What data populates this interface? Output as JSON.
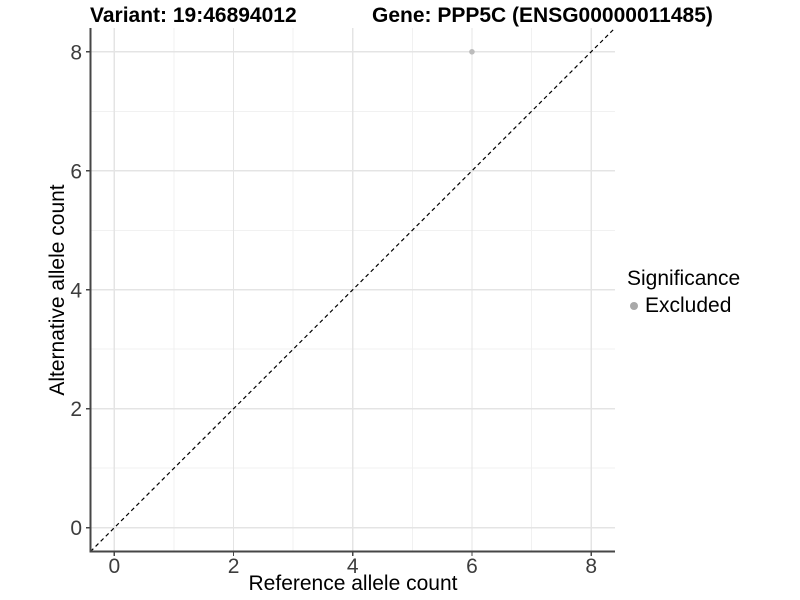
{
  "chart_data": {
    "type": "scatter",
    "title_left": "Variant: 19:46894012",
    "title_right": "Gene: PPP5C (ENSG00000011485)",
    "xlabel": "Reference allele count",
    "ylabel": "Alternative allele count",
    "xlim": [
      -0.4,
      8.4
    ],
    "ylim": [
      -0.4,
      8.4
    ],
    "x_ticks": [
      0,
      2,
      4,
      6,
      8
    ],
    "y_ticks": [
      0,
      2,
      4,
      6,
      8
    ],
    "x_minor_ticks": [
      1,
      3,
      5,
      7
    ],
    "y_minor_ticks": [
      1,
      3,
      5,
      7
    ],
    "grid": "major+minor",
    "reference_line": {
      "type": "identity",
      "linetype": "dashed",
      "color": "#000000"
    },
    "series": [
      {
        "name": "Excluded",
        "color": "#bcbcbc",
        "point_radius": 2.8,
        "points": [
          {
            "x": 6,
            "y": 8
          }
        ]
      }
    ],
    "legend": {
      "title": "Significance",
      "position": "right",
      "items": [
        {
          "label": "Excluded",
          "color": "#a9a9a9"
        }
      ]
    },
    "colors": {
      "background": "#ffffff",
      "panel_background": "#ffffff",
      "grid_major": "#e4e4e4",
      "grid_minor": "#f1f1f1",
      "axis_line": "#464646",
      "tick_mark": "#464646",
      "tick_text": "#3d3d3d",
      "title_text": "#000000"
    }
  }
}
